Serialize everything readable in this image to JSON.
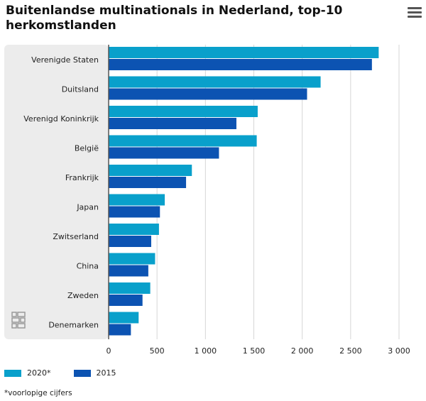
{
  "title": "Buitenlandse multinationals in Nederland, top-10 herkomstlanden",
  "menu_icon": "hamburger-menu-icon",
  "logo_icon": "cbs-logo-icon",
  "footnote": "*voorlopige cijfers",
  "colors": {
    "series_2020": "#09a0cb",
    "series_2015": "#0c53b2",
    "plot_bg": "#ececec"
  },
  "chart_data": {
    "type": "bar",
    "orientation": "horizontal",
    "categories": [
      "Verenigde Staten",
      "Duitsland",
      "Verenigd Koninkrijk",
      "België",
      "Frankrijk",
      "Japan",
      "Zwitserland",
      "China",
      "Zweden",
      "Denemarken"
    ],
    "series": [
      {
        "name": "2020*",
        "values": [
          2790,
          2190,
          1540,
          1530,
          860,
          580,
          520,
          480,
          430,
          310
        ]
      },
      {
        "name": "2015",
        "values": [
          2720,
          2050,
          1320,
          1140,
          800,
          530,
          440,
          410,
          350,
          230
        ]
      }
    ],
    "xlim": [
      0,
      3000
    ],
    "xticks": [
      0,
      500,
      1000,
      1500,
      2000,
      2500,
      3000
    ],
    "xtick_labels": [
      "0",
      "500",
      "1 000",
      "1 500",
      "2 000",
      "2 500",
      "3 000"
    ],
    "grid": "vertical",
    "legend_position": "bottom-left"
  }
}
